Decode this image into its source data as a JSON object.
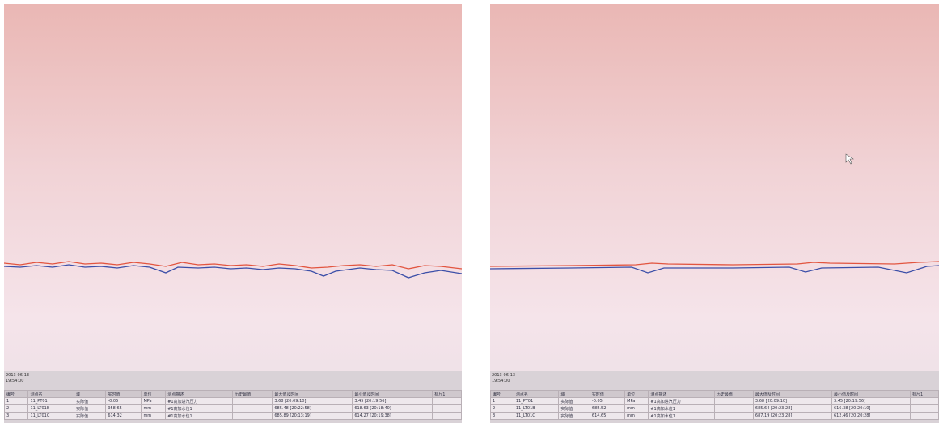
{
  "panels": [
    {
      "date": "2013-06-13",
      "time": "19:54:00",
      "columns": [
        "编号",
        "测点名",
        "域",
        "实时值",
        "单位",
        "测点描述",
        "历史最值",
        "最大值及时间",
        "最小值及时间",
        "标尺1"
      ],
      "rows": [
        [
          "1",
          "11_PT01",
          "实际值",
          "-0.05",
          "MPa",
          "#1高加进汽压力",
          "",
          "3.68 [20:09:10]",
          "3.45 [20:19:56]",
          ""
        ],
        [
          "2",
          "11_LT01B",
          "实际值",
          "958.65",
          "mm",
          "#1高加水位1",
          "",
          "685.48 [20:22:58]",
          "618.63 [20:18:40]",
          ""
        ],
        [
          "3",
          "11_LT01C",
          "实际值",
          "614.32",
          "mm",
          "#1高加水位1",
          "",
          "685.89 [20:13:19]",
          "614.27 [20:19:38]",
          ""
        ]
      ]
    },
    {
      "date": "2013-06-13",
      "time": "19:54:00",
      "columns": [
        "编号",
        "测点名",
        "域",
        "实时值",
        "单位",
        "测点描述",
        "历史最值",
        "最大值及时间",
        "最小值及时间",
        "标尺1"
      ],
      "rows": [
        [
          "1",
          "11_PT01",
          "实际值",
          "-0.05",
          "MPa",
          "#1高加进汽压力",
          "",
          "3.68 [20:09:10]",
          "3.45 [20:19:56]",
          ""
        ],
        [
          "2",
          "11_LT01B",
          "实际值",
          "685.52",
          "mm",
          "#1高加水位1",
          "",
          "685.64 [20:23:28]",
          "616.38 [20:20:10]",
          ""
        ],
        [
          "3",
          "11_LT01C",
          "实际值",
          "614.65",
          "mm",
          "#1高加水位1",
          "",
          "687.19 [20:23:28]",
          "612.46 [20:20:28]",
          ""
        ]
      ]
    }
  ]
}
